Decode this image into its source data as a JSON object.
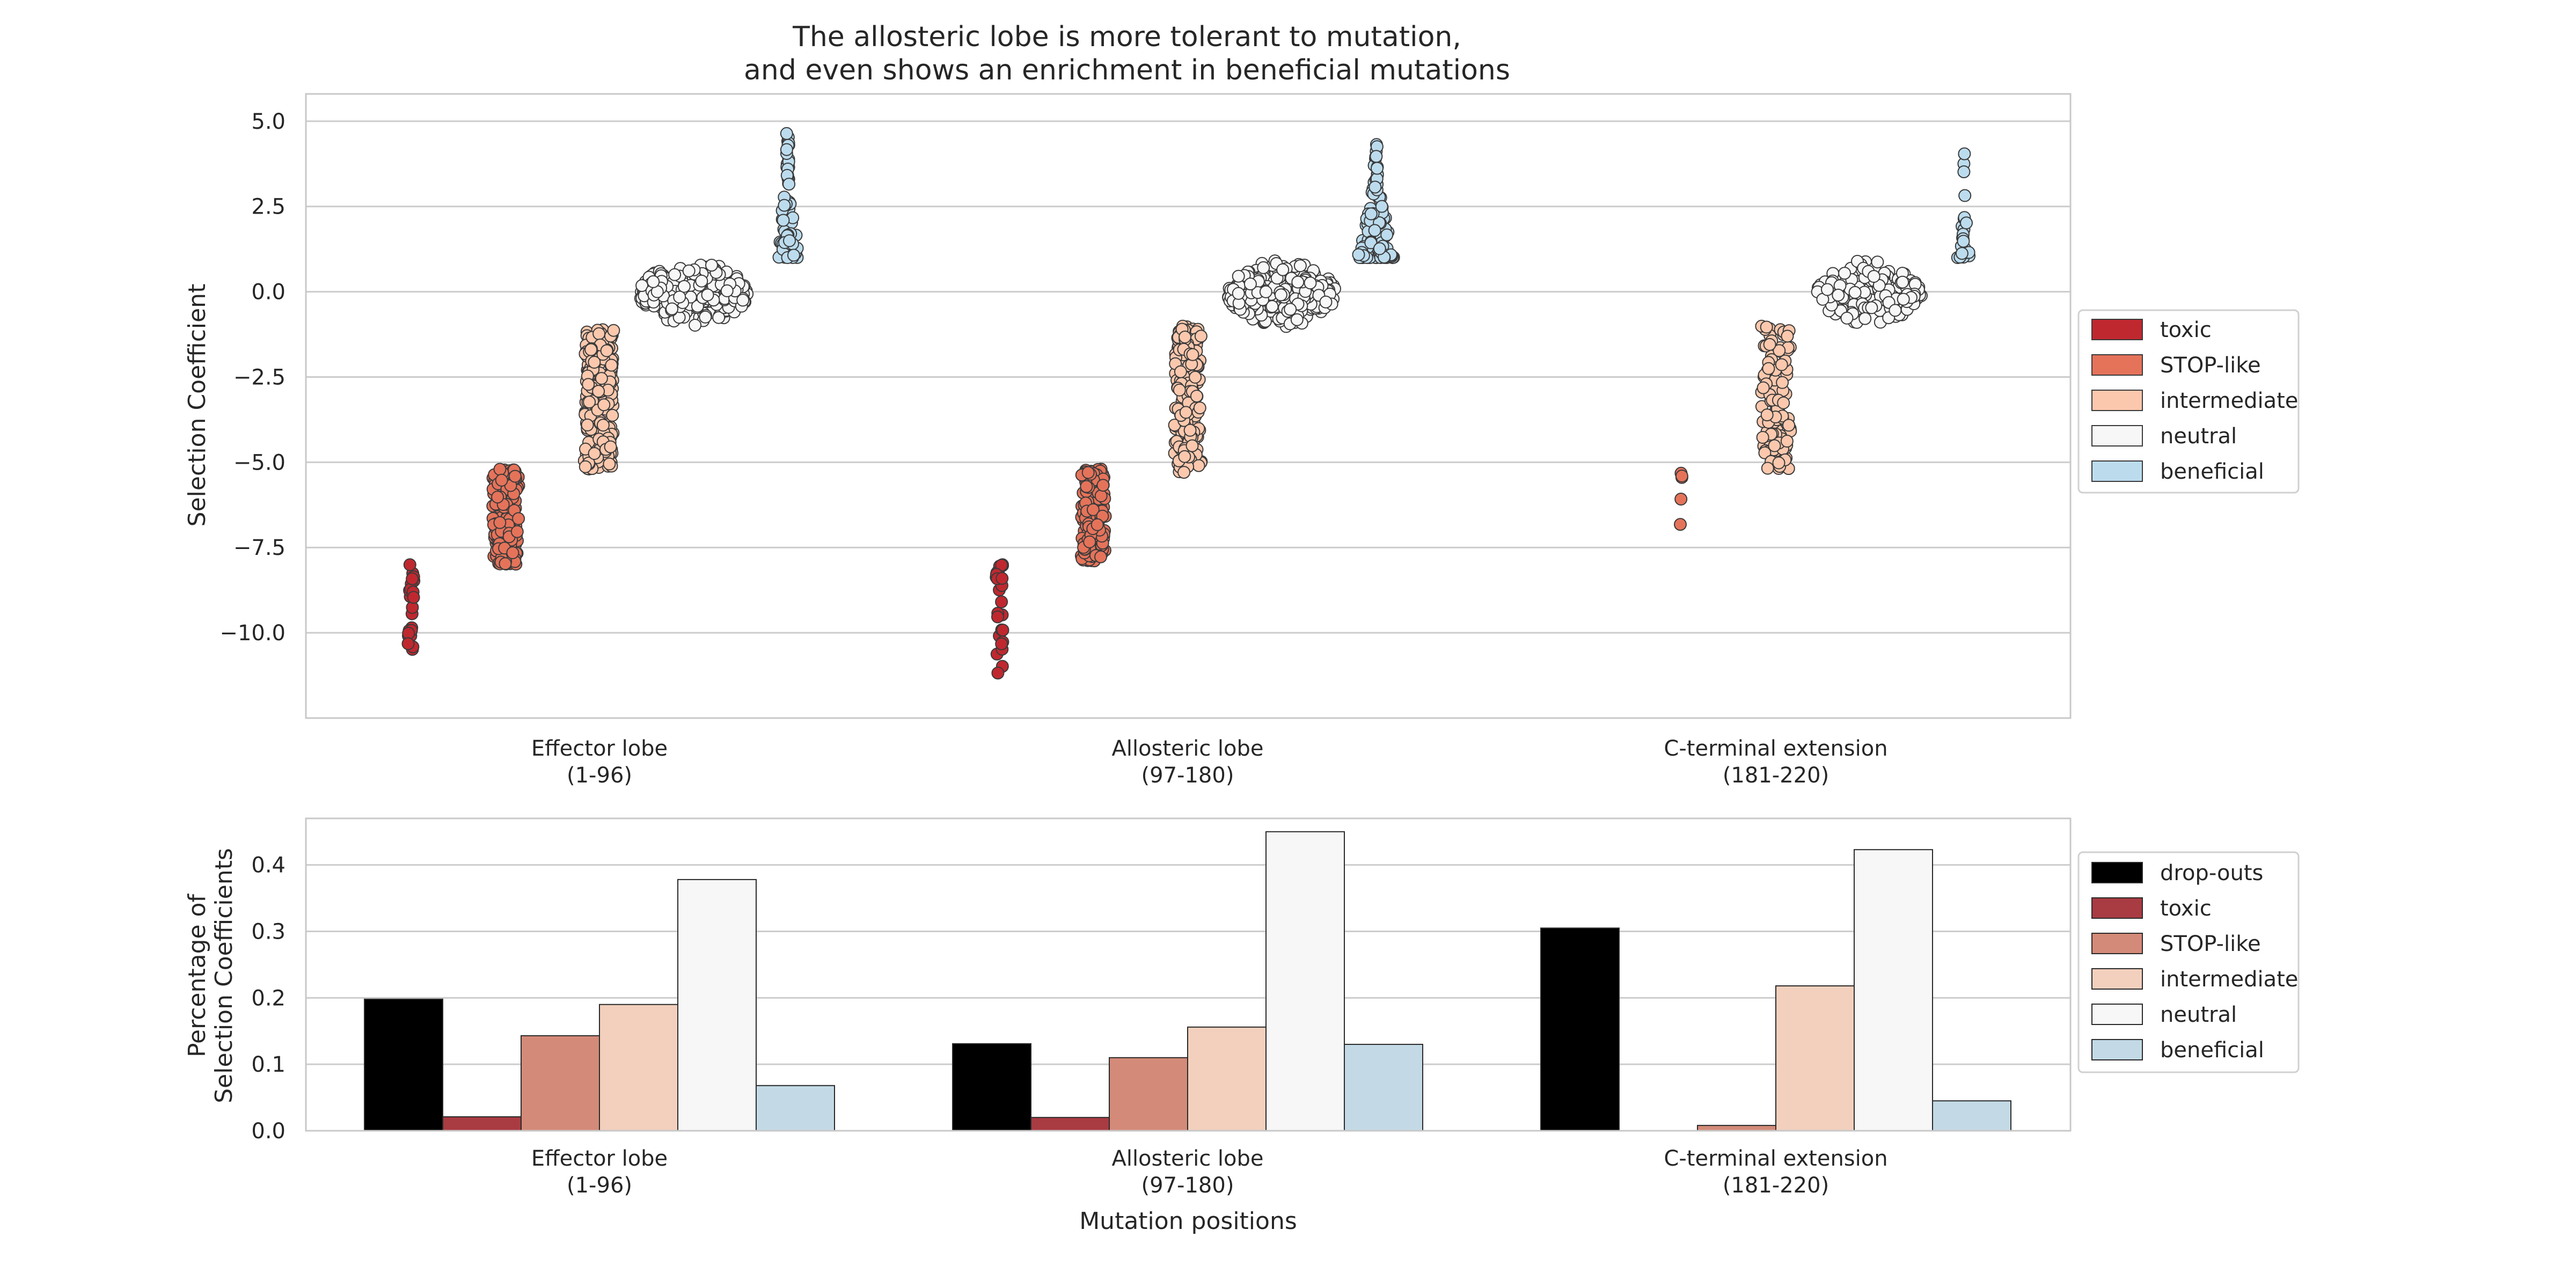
{
  "figure": {
    "title_line1": "The allosteric lobe is more tolerant to mutation,",
    "title_line2": "and even shows an enrichment in beneficial mutations"
  },
  "colors": {
    "toxic": "#c0282f",
    "stop_like": "#e5735a",
    "intermediate": "#fbc8ad",
    "neutral": "#f7f7f7",
    "beneficial": "#bcdcee",
    "dropouts": "#000000",
    "bar_toxic": "#a93b42",
    "bar_stop_like": "#d48a78",
    "bar_intermediate": "#f2d0bd",
    "bar_neutral": "#f6f7f6",
    "bar_beneficial": "#c3dae6",
    "grid": "#cccccc",
    "axes": "#c8c8c8"
  },
  "chart_data": [
    {
      "type": "scatter",
      "kind": "swarm",
      "title": "",
      "xlabel": "",
      "ylabel": "Selection Coefficient",
      "ylim": [
        -12.5,
        5.8
      ],
      "yticks": [
        5.0,
        2.5,
        0.0,
        -2.5,
        -5.0,
        -7.5,
        -10.0
      ],
      "ytick_labels": [
        "5.0",
        "2.5",
        "0.0",
        "−2.5",
        "−5.0",
        "−7.5",
        "−10.0"
      ],
      "grid": true,
      "legend_position": "right",
      "categories": [
        "Effector lobe\n(1-96)",
        "Allosteric lobe\n(97-180)",
        "C-terminal extension\n(181-220)"
      ],
      "category_lines": [
        [
          "Effector lobe",
          "(1-96)"
        ],
        [
          "Allosteric lobe",
          "(97-180)"
        ],
        [
          "C-terminal extension",
          "(181-220)"
        ]
      ],
      "hue_order": [
        "toxic",
        "STOP-like",
        "intermediate",
        "neutral",
        "beneficial"
      ],
      "groups": [
        {
          "category": 0,
          "hue": "toxic",
          "min": -10.5,
          "max": -8.0,
          "width": 0.08,
          "count": 24
        },
        {
          "category": 0,
          "hue": "STOP-like",
          "min": -8.0,
          "max": -5.2,
          "width": 0.3,
          "count": 180
        },
        {
          "category": 0,
          "hue": "intermediate",
          "min": -5.2,
          "max": -1.0,
          "width": 0.34,
          "count": 240
        },
        {
          "category": 0,
          "hue": "neutral",
          "min": -1.2,
          "max": 1.1,
          "width": 1.15,
          "count": 300
        },
        {
          "category": 0,
          "hue": "beneficial",
          "min": 1.0,
          "max": 4.7,
          "width": 0.25,
          "count": 70
        },
        {
          "category": 1,
          "hue": "toxic",
          "min": -11.3,
          "max": -8.0,
          "width": 0.08,
          "count": 28
        },
        {
          "category": 1,
          "hue": "STOP-like",
          "min": -7.9,
          "max": -5.2,
          "width": 0.28,
          "count": 150
        },
        {
          "category": 1,
          "hue": "intermediate",
          "min": -5.3,
          "max": -1.0,
          "width": 0.3,
          "count": 200
        },
        {
          "category": 1,
          "hue": "neutral",
          "min": -1.2,
          "max": 1.1,
          "width": 1.15,
          "count": 320
        },
        {
          "category": 1,
          "hue": "beneficial",
          "min": 1.0,
          "max": 4.4,
          "width": 0.4,
          "count": 110
        },
        {
          "category": 2,
          "hue": "STOP-like",
          "min": -7.1,
          "max": -5.3,
          "width": 0.04,
          "count": 5
        },
        {
          "category": 2,
          "hue": "intermediate",
          "min": -5.2,
          "max": -1.0,
          "width": 0.34,
          "count": 110
        },
        {
          "category": 2,
          "hue": "neutral",
          "min": -1.2,
          "max": 1.1,
          "width": 1.15,
          "count": 160
        },
        {
          "category": 2,
          "hue": "beneficial",
          "min": 1.0,
          "max": 4.1,
          "width": 0.14,
          "count": 22
        }
      ]
    },
    {
      "type": "bar",
      "title": "",
      "xlabel": "Mutation positions",
      "ylabel_lines": [
        "Percentage of",
        "Selection Coefficients"
      ],
      "ylim": [
        0,
        0.47
      ],
      "yticks": [
        0.0,
        0.1,
        0.2,
        0.3,
        0.4
      ],
      "ytick_labels": [
        "0.0",
        "0.1",
        "0.2",
        "0.3",
        "0.4"
      ],
      "grid": true,
      "legend_position": "right",
      "categories": [
        "Effector lobe\n(1-96)",
        "Allosteric lobe\n(97-180)",
        "C-terminal extension\n(181-220)"
      ],
      "category_lines": [
        [
          "Effector lobe",
          "(1-96)"
        ],
        [
          "Allosteric lobe",
          "(97-180)"
        ],
        [
          "C-terminal extension",
          "(181-220)"
        ]
      ],
      "series": [
        {
          "name": "drop-outs",
          "values": [
            0.198,
            0.131,
            0.305
          ]
        },
        {
          "name": "toxic",
          "values": [
            0.021,
            0.02,
            0.0
          ]
        },
        {
          "name": "STOP-like",
          "values": [
            0.143,
            0.11,
            0.008
          ]
        },
        {
          "name": "intermediate",
          "values": [
            0.19,
            0.156,
            0.218
          ]
        },
        {
          "name": "neutral",
          "values": [
            0.378,
            0.45,
            0.423
          ]
        },
        {
          "name": "beneficial",
          "values": [
            0.068,
            0.13,
            0.045
          ]
        }
      ]
    }
  ]
}
